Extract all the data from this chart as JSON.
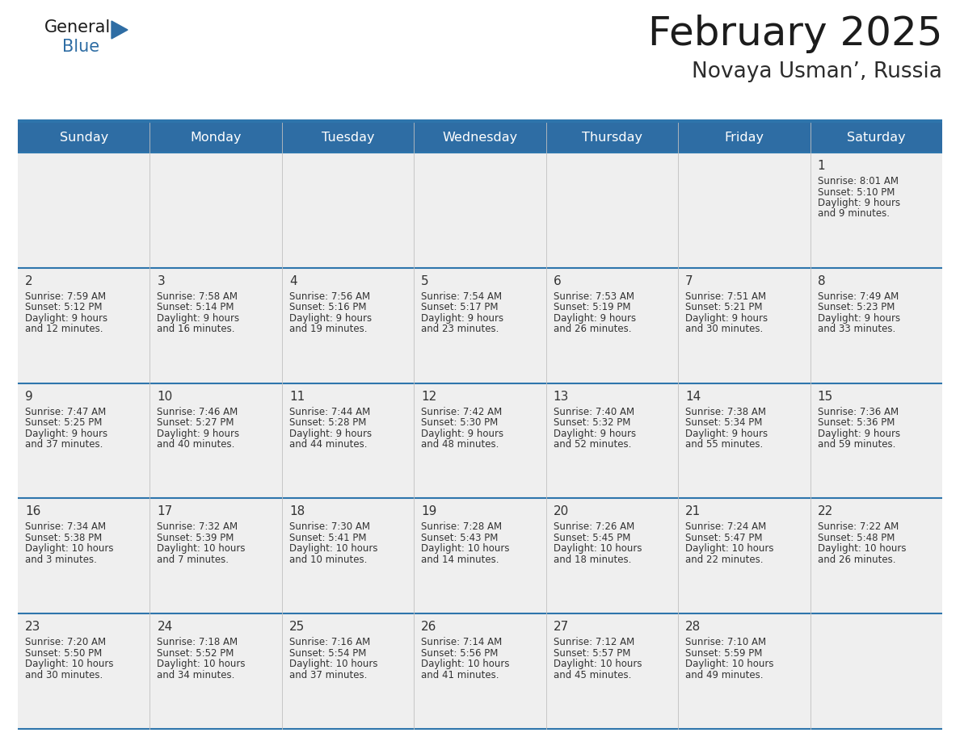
{
  "title": "February 2025",
  "subtitle": "Novaya Usman’, Russia",
  "days_of_week": [
    "Sunday",
    "Monday",
    "Tuesday",
    "Wednesday",
    "Thursday",
    "Friday",
    "Saturday"
  ],
  "header_bg": "#2E6DA4",
  "header_text": "#FFFFFF",
  "bg_color": "#FFFFFF",
  "row_bg": "#EFEFEF",
  "separator_color": "#2E75AC",
  "day_num_color": "#333333",
  "text_color": "#333333",
  "logo_general_color": "#1a1a1a",
  "logo_blue_color": "#2E6DA4",
  "calendar_data": [
    [
      null,
      null,
      null,
      null,
      null,
      null,
      {
        "day": "1",
        "sunrise": "8:01 AM",
        "sunset": "5:10 PM",
        "daylight": "9 hours",
        "daylight2": "and 9 minutes."
      }
    ],
    [
      {
        "day": "2",
        "sunrise": "7:59 AM",
        "sunset": "5:12 PM",
        "daylight": "9 hours",
        "daylight2": "and 12 minutes."
      },
      {
        "day": "3",
        "sunrise": "7:58 AM",
        "sunset": "5:14 PM",
        "daylight": "9 hours",
        "daylight2": "and 16 minutes."
      },
      {
        "day": "4",
        "sunrise": "7:56 AM",
        "sunset": "5:16 PM",
        "daylight": "9 hours",
        "daylight2": "and 19 minutes."
      },
      {
        "day": "5",
        "sunrise": "7:54 AM",
        "sunset": "5:17 PM",
        "daylight": "9 hours",
        "daylight2": "and 23 minutes."
      },
      {
        "day": "6",
        "sunrise": "7:53 AM",
        "sunset": "5:19 PM",
        "daylight": "9 hours",
        "daylight2": "and 26 minutes."
      },
      {
        "day": "7",
        "sunrise": "7:51 AM",
        "sunset": "5:21 PM",
        "daylight": "9 hours",
        "daylight2": "and 30 minutes."
      },
      {
        "day": "8",
        "sunrise": "7:49 AM",
        "sunset": "5:23 PM",
        "daylight": "9 hours",
        "daylight2": "and 33 minutes."
      }
    ],
    [
      {
        "day": "9",
        "sunrise": "7:47 AM",
        "sunset": "5:25 PM",
        "daylight": "9 hours",
        "daylight2": "and 37 minutes."
      },
      {
        "day": "10",
        "sunrise": "7:46 AM",
        "sunset": "5:27 PM",
        "daylight": "9 hours",
        "daylight2": "and 40 minutes."
      },
      {
        "day": "11",
        "sunrise": "7:44 AM",
        "sunset": "5:28 PM",
        "daylight": "9 hours",
        "daylight2": "and 44 minutes."
      },
      {
        "day": "12",
        "sunrise": "7:42 AM",
        "sunset": "5:30 PM",
        "daylight": "9 hours",
        "daylight2": "and 48 minutes."
      },
      {
        "day": "13",
        "sunrise": "7:40 AM",
        "sunset": "5:32 PM",
        "daylight": "9 hours",
        "daylight2": "and 52 minutes."
      },
      {
        "day": "14",
        "sunrise": "7:38 AM",
        "sunset": "5:34 PM",
        "daylight": "9 hours",
        "daylight2": "and 55 minutes."
      },
      {
        "day": "15",
        "sunrise": "7:36 AM",
        "sunset": "5:36 PM",
        "daylight": "9 hours",
        "daylight2": "and 59 minutes."
      }
    ],
    [
      {
        "day": "16",
        "sunrise": "7:34 AM",
        "sunset": "5:38 PM",
        "daylight": "10 hours",
        "daylight2": "and 3 minutes."
      },
      {
        "day": "17",
        "sunrise": "7:32 AM",
        "sunset": "5:39 PM",
        "daylight": "10 hours",
        "daylight2": "and 7 minutes."
      },
      {
        "day": "18",
        "sunrise": "7:30 AM",
        "sunset": "5:41 PM",
        "daylight": "10 hours",
        "daylight2": "and 10 minutes."
      },
      {
        "day": "19",
        "sunrise": "7:28 AM",
        "sunset": "5:43 PM",
        "daylight": "10 hours",
        "daylight2": "and 14 minutes."
      },
      {
        "day": "20",
        "sunrise": "7:26 AM",
        "sunset": "5:45 PM",
        "daylight": "10 hours",
        "daylight2": "and 18 minutes."
      },
      {
        "day": "21",
        "sunrise": "7:24 AM",
        "sunset": "5:47 PM",
        "daylight": "10 hours",
        "daylight2": "and 22 minutes."
      },
      {
        "day": "22",
        "sunrise": "7:22 AM",
        "sunset": "5:48 PM",
        "daylight": "10 hours",
        "daylight2": "and 26 minutes."
      }
    ],
    [
      {
        "day": "23",
        "sunrise": "7:20 AM",
        "sunset": "5:50 PM",
        "daylight": "10 hours",
        "daylight2": "and 30 minutes."
      },
      {
        "day": "24",
        "sunrise": "7:18 AM",
        "sunset": "5:52 PM",
        "daylight": "10 hours",
        "daylight2": "and 34 minutes."
      },
      {
        "day": "25",
        "sunrise": "7:16 AM",
        "sunset": "5:54 PM",
        "daylight": "10 hours",
        "daylight2": "and 37 minutes."
      },
      {
        "day": "26",
        "sunrise": "7:14 AM",
        "sunset": "5:56 PM",
        "daylight": "10 hours",
        "daylight2": "and 41 minutes."
      },
      {
        "day": "27",
        "sunrise": "7:12 AM",
        "sunset": "5:57 PM",
        "daylight": "10 hours",
        "daylight2": "and 45 minutes."
      },
      {
        "day": "28",
        "sunrise": "7:10 AM",
        "sunset": "5:59 PM",
        "daylight": "10 hours",
        "daylight2": "and 49 minutes."
      },
      null
    ]
  ]
}
